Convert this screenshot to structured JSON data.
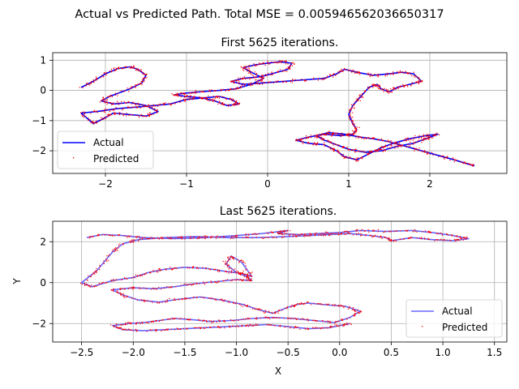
{
  "figure": {
    "suptitle": "Actual vs Predicted Path. Total MSE = 0.005946562036650317"
  },
  "colors": {
    "actual_top": "#0000ff",
    "actual_bottom": "#6666ff",
    "predicted": "#ff0000",
    "grid": "#b0b0b0"
  },
  "chart_data": [
    {
      "type": "line",
      "title": "First 5625 iterations.",
      "xlabel": "",
      "ylabel": "",
      "xlim": [
        -2.65,
        2.95
      ],
      "ylim": [
        -2.75,
        1.25
      ],
      "xticks": [
        -2,
        -1,
        0,
        1,
        2
      ],
      "yticks": [
        -2,
        -1,
        0,
        1
      ],
      "grid": true,
      "legend": {
        "placement": "lower-left",
        "entries": [
          "Actual",
          "Predicted"
        ]
      },
      "series": [
        {
          "name": "Actual",
          "style": "line",
          "x": [
            -2.3,
            -2.15,
            -2.0,
            -1.85,
            -1.7,
            -1.6,
            -1.5,
            -1.55,
            -1.7,
            -1.95,
            -2.05,
            -1.9,
            -1.7,
            -1.5,
            -1.35,
            -1.5,
            -1.7,
            -1.9,
            -2.0,
            -2.15,
            -2.3,
            -2.1,
            -1.85,
            -1.6,
            -1.4,
            -1.2,
            -1.0,
            -0.8,
            -0.65,
            -0.5,
            -0.35,
            -0.45,
            -0.6,
            -0.8,
            -1.0,
            -1.15,
            -1.05,
            -0.85,
            -0.6,
            -0.4,
            -0.2,
            -0.05,
            -0.2,
            -0.3,
            -0.15,
            0.0,
            0.15,
            0.3,
            0.25,
            0.05,
            -0.1,
            -0.3,
            -0.45,
            -0.3,
            -0.05,
            0.2,
            0.45,
            0.7,
            0.85,
            0.95,
            1.1,
            1.3,
            1.5,
            1.65,
            1.8,
            1.9,
            1.75,
            1.6,
            1.5,
            1.4,
            1.35,
            1.25,
            1.15,
            1.05,
            1.0,
            1.05,
            1.1,
            1.05,
            0.9,
            0.7,
            0.5,
            0.35,
            0.5,
            0.7,
            0.85,
            0.95,
            1.1,
            1.25,
            1.4,
            1.55,
            1.75,
            1.95,
            2.1,
            1.95,
            1.8,
            1.6,
            1.4,
            1.2,
            1.0,
            0.85,
            0.7,
            0.6,
            0.75,
            0.95,
            1.15,
            1.3,
            1.5,
            1.7,
            1.9,
            2.1,
            2.3,
            2.45,
            2.55
          ],
          "y": [
            0.1,
            0.3,
            0.55,
            0.72,
            0.78,
            0.7,
            0.5,
            0.25,
            0.05,
            -0.2,
            -0.35,
            -0.45,
            -0.4,
            -0.5,
            -0.7,
            -0.85,
            -0.8,
            -0.75,
            -0.9,
            -1.1,
            -0.75,
            -0.7,
            -0.6,
            -0.55,
            -0.5,
            -0.45,
            -0.3,
            -0.25,
            -0.35,
            -0.5,
            -0.45,
            -0.3,
            -0.2,
            -0.25,
            -0.2,
            -0.15,
            -0.1,
            -0.05,
            0.0,
            0.05,
            0.2,
            0.4,
            0.6,
            0.75,
            0.85,
            0.9,
            0.95,
            0.9,
            0.7,
            0.55,
            0.45,
            0.4,
            0.3,
            0.2,
            0.25,
            0.3,
            0.35,
            0.4,
            0.55,
            0.7,
            0.6,
            0.5,
            0.55,
            0.6,
            0.55,
            0.3,
            0.2,
            0.1,
            -0.05,
            0.05,
            0.2,
            0.1,
            -0.2,
            -0.5,
            -0.8,
            -1.1,
            -1.3,
            -1.45,
            -1.5,
            -1.45,
            -1.55,
            -1.65,
            -1.75,
            -1.8,
            -2.0,
            -2.2,
            -2.3,
            -2.1,
            -1.9,
            -1.75,
            -1.6,
            -1.5,
            -1.45,
            -1.6,
            -1.75,
            -1.85,
            -2.0,
            -2.05,
            -1.95,
            -1.8,
            -1.65,
            -1.5,
            -1.4,
            -1.45,
            -1.55,
            -1.6,
            -1.7,
            -1.85,
            -2.0,
            -2.15,
            -2.3,
            -2.42,
            -2.5
          ]
        },
        {
          "name": "Predicted",
          "style": "scatter"
        }
      ]
    },
    {
      "type": "line",
      "title": "Last 5625 iterations.",
      "xlabel": "X",
      "ylabel": "Y",
      "xlim": [
        -2.78,
        1.62
      ],
      "ylim": [
        -2.9,
        3.0
      ],
      "xticks": [
        -2.5,
        -2.0,
        -1.5,
        -1.0,
        -0.5,
        0.0,
        0.5,
        1.0,
        1.5
      ],
      "yticks": [
        -2,
        0,
        2
      ],
      "grid": true,
      "legend": {
        "placement": "lower-right",
        "entries": [
          "Actual",
          "Predicted"
        ]
      },
      "series": [
        {
          "name": "Actual",
          "style": "line",
          "x": [
            -2.45,
            -2.3,
            -2.1,
            -1.9,
            -1.6,
            -1.3,
            -1.0,
            -0.75,
            -0.5,
            -0.6,
            -0.4,
            -0.2,
            0.0,
            0.2,
            0.45,
            0.7,
            0.9,
            1.1,
            1.25,
            1.1,
            0.9,
            0.7,
            0.5,
            0.45,
            0.3,
            0.1,
            -0.1,
            -0.3,
            -0.5,
            -0.8,
            -1.1,
            -1.4,
            -1.7,
            -1.95,
            -2.1,
            -2.2,
            -2.35,
            -2.5,
            -2.4,
            -2.2,
            -2.0,
            -1.85,
            -1.7,
            -1.5,
            -1.3,
            -1.1,
            -0.95,
            -0.85,
            -0.95,
            -1.05,
            -1.1,
            -1.0,
            -0.9,
            -0.85,
            -1.0,
            -1.2,
            -1.4,
            -1.6,
            -1.8,
            -2.0,
            -2.2,
            -2.1,
            -1.95,
            -1.75,
            -1.55,
            -1.35,
            -1.15,
            -0.95,
            -0.8,
            -0.65,
            -0.5,
            -0.4,
            -0.3,
            -0.1,
            0.05,
            0.2,
            0.1,
            -0.05,
            -0.25,
            -0.45,
            -0.65,
            -0.85,
            -1.05,
            -1.25,
            -1.45,
            -1.6,
            -1.75,
            -1.9,
            -2.05,
            -2.2,
            -2.1,
            -1.9,
            -1.7,
            -1.5,
            -1.3,
            -1.1,
            -0.9,
            -0.7,
            -0.5,
            -0.3,
            -0.1,
            0.0,
            0.1
          ],
          "y": [
            2.2,
            2.35,
            2.3,
            2.2,
            2.15,
            2.2,
            2.3,
            2.4,
            2.55,
            2.4,
            2.35,
            2.4,
            2.45,
            2.55,
            2.5,
            2.55,
            2.45,
            2.3,
            2.15,
            2.05,
            2.1,
            2.2,
            2.05,
            2.2,
            2.3,
            2.4,
            2.35,
            2.3,
            2.25,
            2.2,
            2.2,
            2.25,
            2.2,
            2.1,
            1.9,
            1.5,
            0.6,
            0.0,
            -0.2,
            0.1,
            0.25,
            0.5,
            0.65,
            0.75,
            0.7,
            0.55,
            0.45,
            0.3,
            1.0,
            1.3,
            0.9,
            0.5,
            0.3,
            0.1,
            0.15,
            0.05,
            -0.05,
            -0.2,
            -0.3,
            -0.25,
            -0.35,
            -0.6,
            -0.85,
            -0.95,
            -0.8,
            -0.7,
            -0.85,
            -1.05,
            -1.3,
            -1.5,
            -1.2,
            -1.05,
            -1.0,
            -1.1,
            -1.15,
            -1.4,
            -1.7,
            -1.95,
            -1.85,
            -1.75,
            -1.7,
            -1.75,
            -1.85,
            -1.9,
            -1.8,
            -1.75,
            -1.85,
            -1.95,
            -2.0,
            -2.1,
            -2.3,
            -2.35,
            -2.3,
            -2.25,
            -2.2,
            -2.15,
            -2.1,
            -2.05,
            -2.15,
            -2.25,
            -2.2,
            -2.1,
            -2.0
          ]
        },
        {
          "name": "Predicted",
          "style": "scatter"
        }
      ]
    }
  ]
}
